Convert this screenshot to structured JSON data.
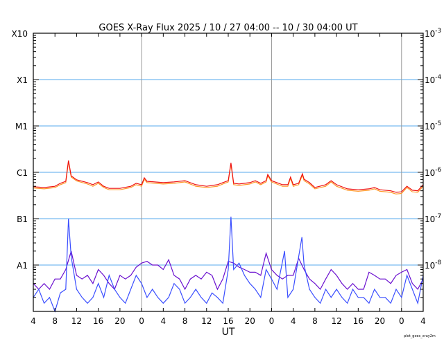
{
  "chart_data": {
    "type": "line",
    "title": "GOES X-Ray Flux   2025 / 10 / 27   04:00 -- 10 / 30   04:00   UT",
    "xlabel": "UT",
    "footer": "plot_goes_xray2m",
    "x_unit": "hours since 2025-10-27 04:00 UT",
    "xlim": [
      0,
      72
    ],
    "x_tick_values": [
      0,
      4,
      8,
      12,
      16,
      20,
      24,
      28,
      32,
      36,
      40,
      44,
      48,
      52,
      56,
      60,
      64,
      68,
      72
    ],
    "x_tick_labels": [
      "4",
      "8",
      "12",
      "16",
      "20",
      "0",
      "4",
      "8",
      "12",
      "16",
      "20",
      "0",
      "4",
      "8",
      "12",
      "16",
      "20",
      "0",
      "4"
    ],
    "day_boundaries": [
      20,
      44,
      68
    ],
    "y_scale": "log",
    "ylim": [
      1e-09,
      0.001
    ],
    "left_labels": [
      {
        "value": 0.001,
        "text": "X10"
      },
      {
        "value": 0.0001,
        "text": "X1"
      },
      {
        "value": 1e-05,
        "text": "M1"
      },
      {
        "value": 1e-06,
        "text": "C1"
      },
      {
        "value": 1e-07,
        "text": "B1"
      },
      {
        "value": 1e-08,
        "text": "A1"
      }
    ],
    "right_labels": [
      {
        "value": 0.001,
        "base": "10",
        "exp": "-3"
      },
      {
        "value": 0.0001,
        "base": "10",
        "exp": "-4"
      },
      {
        "value": 1e-05,
        "base": "10",
        "exp": "-5"
      },
      {
        "value": 1e-06,
        "base": "10",
        "exp": "-6"
      },
      {
        "value": 1e-07,
        "base": "10",
        "exp": "-7"
      },
      {
        "value": 1e-08,
        "base": "10",
        "exp": "-8"
      }
    ],
    "grid": {
      "horizontal": true,
      "color": "#55aaee",
      "vertical_day_lines": true,
      "vertical_color": "#999999"
    },
    "series": [
      {
        "color": "#ff9a2a",
        "x": [
          0,
          2,
          4,
          5,
          6,
          6.5,
          7,
          8,
          10,
          11,
          12,
          13,
          14,
          16,
          18,
          19,
          20,
          20.5,
          21,
          24,
          26,
          28,
          30,
          32,
          34,
          35,
          36,
          36.5,
          37,
          38,
          40,
          41,
          42,
          43,
          43.3,
          44,
          46,
          47,
          47.5,
          48,
          49,
          49.7,
          50,
          51,
          52,
          54,
          55,
          56,
          58,
          60,
          62,
          63,
          64,
          66,
          67,
          68,
          69,
          70,
          71,
          72
        ],
        "y": [
          4.6e-07,
          4.4e-07,
          4.7e-07,
          5.4e-07,
          6e-07,
          1.7e-06,
          7.9e-07,
          6.5e-07,
          5.6e-07,
          5e-07,
          5.8e-07,
          4.7e-07,
          4.2e-07,
          4.2e-07,
          4.7e-07,
          5.4e-07,
          5e-07,
          7.1e-07,
          6e-07,
          5.6e-07,
          5.8e-07,
          6.2e-07,
          5e-07,
          4.7e-07,
          5e-07,
          5.6e-07,
          6.2e-07,
          1.5e-06,
          5.4e-07,
          5.2e-07,
          5.6e-07,
          6.2e-07,
          5.4e-07,
          6.2e-07,
          8.4e-07,
          6.2e-07,
          5e-07,
          5e-07,
          7.4e-07,
          5e-07,
          5.4e-07,
          8.7e-07,
          6.6e-07,
          5.6e-07,
          4.4e-07,
          5e-07,
          6.2e-07,
          5e-07,
          4.1e-07,
          3.9e-07,
          4.1e-07,
          4.4e-07,
          3.9e-07,
          3.7e-07,
          3.4e-07,
          3.5e-07,
          4.7e-07,
          3.8e-07,
          3.7e-07,
          5e-07
        ]
      },
      {
        "color": "#ee1111",
        "x": [
          0,
          2,
          4,
          5,
          6,
          6.5,
          7,
          8,
          10,
          11,
          12,
          13,
          14,
          16,
          18,
          19,
          20,
          20.5,
          21,
          24,
          26,
          28,
          30,
          32,
          34,
          35,
          36,
          36.5,
          37,
          38,
          40,
          41,
          42,
          43,
          43.3,
          44,
          46,
          47,
          47.5,
          48,
          49,
          49.7,
          50,
          51,
          52,
          54,
          55,
          56,
          58,
          60,
          62,
          63,
          64,
          66,
          67,
          68,
          69,
          70,
          71,
          72
        ],
        "y": [
          4.9e-07,
          4.7e-07,
          5e-07,
          5.8e-07,
          6.4e-07,
          1.8e-06,
          8.4e-07,
          6.9e-07,
          6e-07,
          5.4e-07,
          6.2e-07,
          5e-07,
          4.5e-07,
          4.5e-07,
          5e-07,
          5.8e-07,
          5.4e-07,
          7.6e-07,
          6.4e-07,
          6e-07,
          6.2e-07,
          6.6e-07,
          5.4e-07,
          5e-07,
          5.4e-07,
          6e-07,
          6.6e-07,
          1.6e-06,
          5.8e-07,
          5.6e-07,
          6e-07,
          6.6e-07,
          5.8e-07,
          6.6e-07,
          9e-07,
          6.6e-07,
          5.4e-07,
          5.4e-07,
          7.9e-07,
          5.4e-07,
          5.8e-07,
          9.3e-07,
          7.1e-07,
          6e-07,
          4.7e-07,
          5.4e-07,
          6.6e-07,
          5.4e-07,
          4.4e-07,
          4.2e-07,
          4.4e-07,
          4.7e-07,
          4.2e-07,
          4e-07,
          3.7e-07,
          3.8e-07,
          5e-07,
          4.1e-07,
          4e-07,
          5.4e-07
        ]
      },
      {
        "color": "#6a0fcf",
        "x": [
          0,
          1,
          2,
          3,
          4,
          5,
          6,
          7,
          8,
          9,
          10,
          11,
          12,
          13,
          14,
          15,
          16,
          17,
          18,
          19,
          20,
          21,
          22,
          23,
          24,
          25,
          26,
          27,
          28,
          29,
          30,
          31,
          32,
          33,
          34,
          35,
          36,
          37,
          38,
          39,
          40,
          41,
          42,
          43,
          44,
          45,
          46,
          47,
          48,
          49,
          50,
          51,
          52,
          53,
          54,
          55,
          56,
          57,
          58,
          59,
          60,
          61,
          62,
          63,
          64,
          65,
          66,
          67,
          68,
          69,
          70,
          71,
          72
        ],
        "y": [
          4e-09,
          3e-09,
          4e-09,
          3e-09,
          5e-09,
          5e-09,
          8e-09,
          2e-08,
          6e-09,
          5e-09,
          6e-09,
          4e-09,
          8e-09,
          6e-09,
          4e-09,
          3e-09,
          6e-09,
          5e-09,
          6e-09,
          9e-09,
          1.1e-08,
          1.2e-08,
          1e-08,
          1e-08,
          8e-09,
          1.3e-08,
          6e-09,
          5e-09,
          3e-09,
          5e-09,
          6e-09,
          5e-09,
          7e-09,
          6e-09,
          3e-09,
          5e-09,
          1.2e-08,
          1.1e-08,
          9e-09,
          8e-09,
          7e-09,
          7e-09,
          6e-09,
          1.8e-08,
          8e-09,
          6e-09,
          5e-09,
          6e-09,
          6e-09,
          1.4e-08,
          8e-09,
          5e-09,
          4e-09,
          3e-09,
          5e-09,
          8e-09,
          6e-09,
          4e-09,
          3e-09,
          4e-09,
          3e-09,
          3e-09,
          7e-09,
          6e-09,
          5e-09,
          5e-09,
          4e-09,
          6e-09,
          7e-09,
          8e-09,
          4e-09,
          3e-09,
          5e-09
        ]
      },
      {
        "color": "#3a4eff",
        "x": [
          0,
          1,
          2,
          3,
          4,
          5,
          6,
          6.5,
          7,
          8,
          9,
          10,
          11,
          12,
          13,
          14,
          15,
          16,
          17,
          18,
          19,
          20,
          21,
          22,
          23,
          24,
          25,
          26,
          27,
          28,
          29,
          30,
          31,
          32,
          33,
          34,
          35,
          36,
          36.5,
          37,
          38,
          39,
          40,
          41,
          42,
          43,
          44,
          45,
          46.4,
          47,
          48,
          49.6,
          50,
          51,
          52,
          53,
          54,
          55,
          56,
          57,
          58,
          59,
          60,
          61,
          62,
          63,
          64,
          65,
          66,
          67,
          68,
          69,
          70,
          71,
          72
        ],
        "y": [
          2e-09,
          3e-09,
          1.5e-09,
          2e-09,
          1e-09,
          2.5e-09,
          3e-09,
          1e-07,
          1.5e-08,
          3e-09,
          2e-09,
          1.5e-09,
          2e-09,
          4e-09,
          2e-09,
          6e-09,
          3e-09,
          2e-09,
          1.5e-09,
          3e-09,
          6e-09,
          4e-09,
          2e-09,
          3e-09,
          2e-09,
          1.5e-09,
          2e-09,
          4e-09,
          3e-09,
          1.5e-09,
          2e-09,
          3e-09,
          2e-09,
          1.5e-09,
          2.5e-09,
          2e-09,
          1.5e-09,
          8e-09,
          1.1e-07,
          8e-09,
          1.1e-08,
          6e-09,
          4e-09,
          3e-09,
          2e-09,
          8e-09,
          5e-09,
          3e-09,
          2e-08,
          2e-09,
          3e-09,
          4e-08,
          1e-08,
          3e-09,
          2e-09,
          1.5e-09,
          3e-09,
          2e-09,
          3e-09,
          2e-09,
          1.5e-09,
          3e-09,
          2e-09,
          2e-09,
          1.5e-09,
          3e-09,
          2e-09,
          2e-09,
          1.5e-09,
          3e-09,
          2e-09,
          6e-09,
          3e-09,
          1.5e-09,
          6e-09
        ]
      }
    ]
  }
}
